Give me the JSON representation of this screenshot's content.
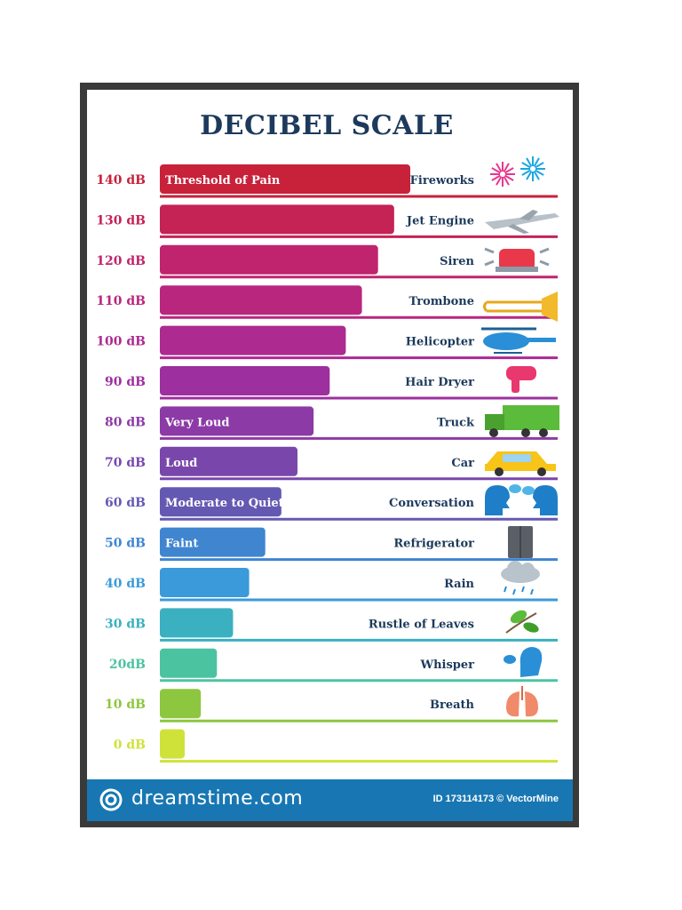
{
  "chart_data": {
    "type": "bar",
    "title": "DECIBEL SCALE",
    "categories": [
      "140 dB",
      "130 dB",
      "120 dB",
      "110 dB",
      "100 dB",
      "90 dB",
      "80 dB",
      "70 dB",
      "60 dB",
      "50 dB",
      "40 dB",
      "30 dB",
      "20dB",
      "10 dB",
      "0 dB"
    ],
    "values": [
      140,
      130,
      120,
      110,
      100,
      90,
      80,
      70,
      60,
      50,
      40,
      30,
      20,
      10,
      0
    ],
    "xlim": [
      0,
      140
    ],
    "bar_labels": [
      "Threshold of Pain",
      "",
      "",
      "",
      "",
      "",
      "Very Loud",
      "Loud",
      "Moderate to Quiet",
      "Faint",
      "",
      "",
      "",
      "",
      ""
    ],
    "examples": [
      "Fireworks",
      "Jet Engine",
      "Siren",
      "Trombone",
      "Helicopter",
      "Hair Dryer",
      "Truck",
      "Car",
      "Conversation",
      "Refrigerator",
      "Rain",
      "Rustle of Leaves",
      "Whisper",
      "Breath",
      ""
    ],
    "example_icons": [
      "fireworks-icon",
      "airplane-icon",
      "siren-icon",
      "trombone-icon",
      "helicopter-icon",
      "hair-dryer-icon",
      "truck-icon",
      "car-icon",
      "conversation-icon",
      "refrigerator-icon",
      "rain-cloud-icon",
      "leaves-icon",
      "whisper-icon",
      "lungs-icon",
      ""
    ],
    "colors": [
      "#c8213a",
      "#c52256",
      "#c0246e",
      "#b9267e",
      "#ad2a90",
      "#9d2f9f",
      "#8c3aa6",
      "#7947ab",
      "#6459b2",
      "#3f85d0",
      "#3a9ada",
      "#3ab0c0",
      "#4cc3a0",
      "#8dc63f",
      "#cfe23a"
    ],
    "grid": false
  },
  "footer": {
    "brand": "dreamstime.com",
    "id_text": "ID 173114173 © VectorMine"
  }
}
